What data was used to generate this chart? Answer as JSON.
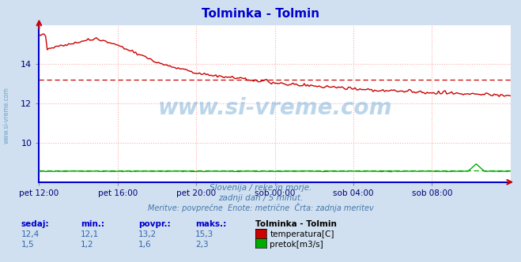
{
  "title": "Tolminka - Tolmin",
  "title_color": "#0000cc",
  "bg_color": "#d0e0f0",
  "plot_bg_color": "#ffffff",
  "grid_color": "#ffaaaa",
  "temp_color": "#cc0000",
  "flow_color": "#00aa00",
  "avg_temp_color": "#cc0000",
  "avg_flow_color": "#00aa00",
  "avg_temp": 13.2,
  "avg_flow": 1.6,
  "xlabel_color": "#000077",
  "x_tick_labels": [
    "pet 12:00",
    "pet 16:00",
    "pet 20:00",
    "sob 00:00",
    "sob 04:00",
    "sob 08:00"
  ],
  "x_tick_positions": [
    0,
    48,
    96,
    144,
    192,
    240
  ],
  "y_ticks": [
    10,
    12,
    14
  ],
  "y_min": 8,
  "y_max": 16,
  "x_max": 288,
  "watermark_text": "www.si-vreme.com",
  "subtitle1": "Slovenija / reke in morje.",
  "subtitle2": "zadnji dan / 5 minut.",
  "subtitle3": "Meritve: povprečne  Enote: metrične  Črta: zadnja meritev",
  "legend_title": "Tolminka - Tolmin",
  "stat_headers": [
    "sedaj:",
    "min.:",
    "povpr.:",
    "maks.:"
  ],
  "stat_temp": [
    "12,4",
    "12,1",
    "13,2",
    "15,3"
  ],
  "stat_flow": [
    "1,5",
    "1,2",
    "1,6",
    "2,3"
  ],
  "legend_temp": "temperatura[C]",
  "legend_flow": "pretok[m3/s]",
  "border_color": "#0000cc",
  "left_axis_color": "#0000cc",
  "bottom_axis_color": "#0000cc"
}
